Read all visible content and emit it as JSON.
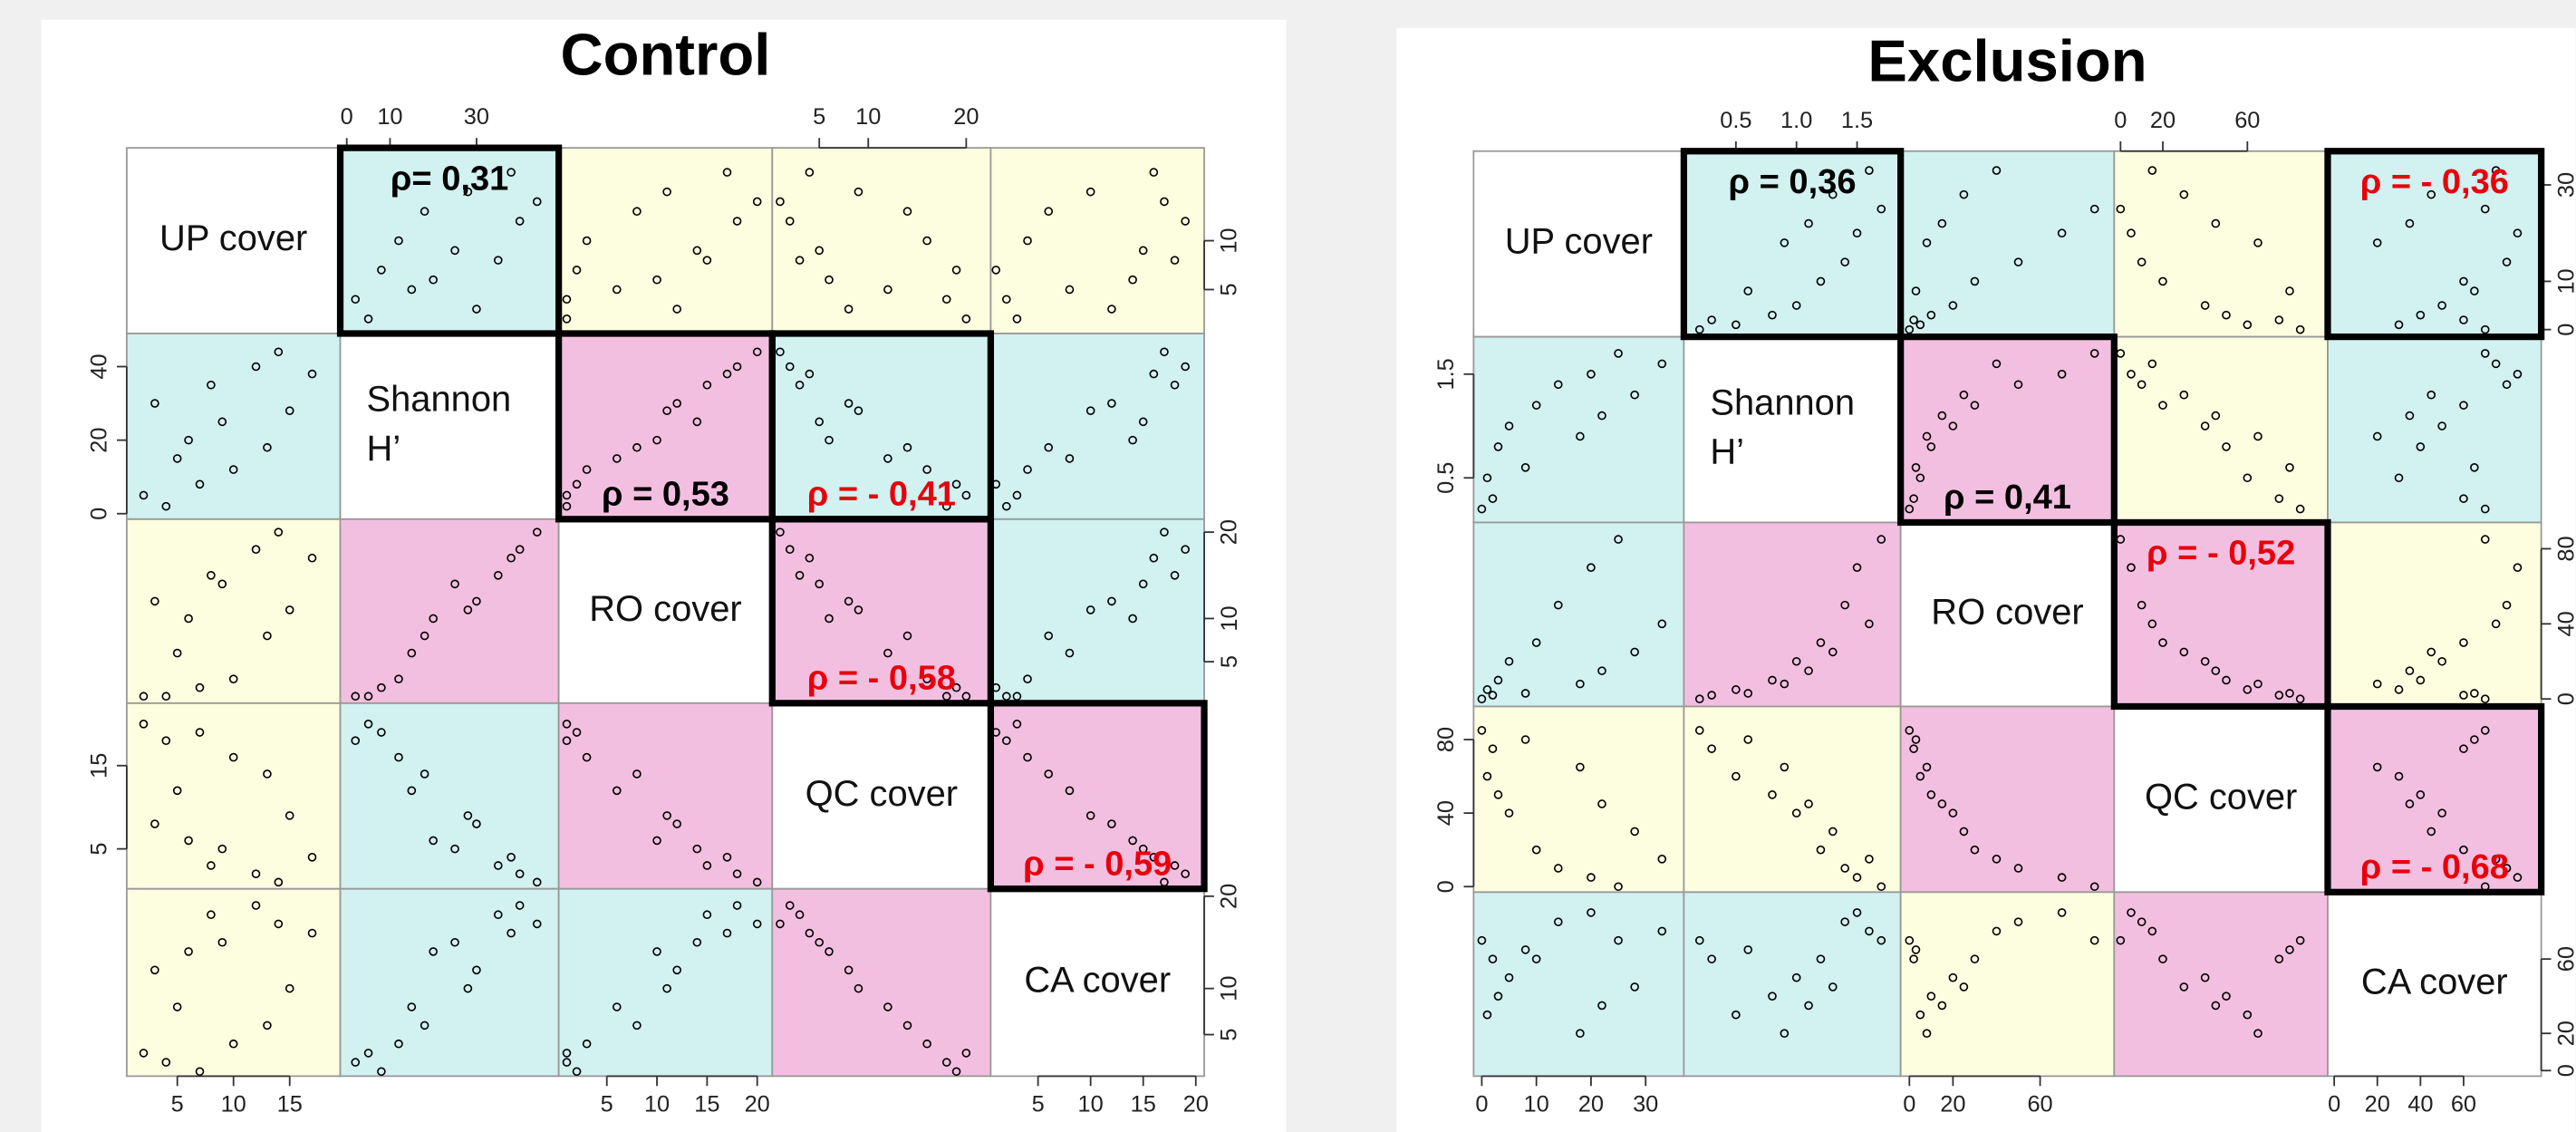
{
  "chart_data": [
    {
      "type": "scatter_matrix",
      "title": "Control",
      "variables": [
        {
          "name": [
            "UP cover"
          ],
          "values": [
            2,
            3,
            4,
            5,
            6,
            7,
            8,
            9,
            10,
            12,
            13,
            14,
            15,
            17
          ],
          "lim": [
            0.5,
            19.5
          ],
          "col_ticks": [
            5,
            10,
            15
          ],
          "row_ticks": [
            5,
            10
          ]
        },
        {
          "name": [
            "Shannon",
            "H’"
          ],
          "values": [
            5,
            30,
            2,
            15,
            20,
            8,
            35,
            25,
            12,
            40,
            18,
            44,
            28,
            38
          ],
          "lim": [
            -1.5,
            49
          ],
          "col_ticks": [
            0,
            10,
            30
          ],
          "row_ticks": [
            0,
            20,
            40
          ]
        },
        {
          "name": [
            "RO cover"
          ],
          "values": [
            1,
            12,
            1,
            6,
            10,
            2,
            15,
            14,
            3,
            18,
            8,
            20,
            11,
            17
          ],
          "lim": [
            0.2,
            21.5
          ],
          "col_ticks": [
            5,
            10,
            15,
            20
          ],
          "row_ticks": [
            5,
            10,
            20
          ]
        },
        {
          "name": [
            "QC cover"
          ],
          "values": [
            20,
            8,
            18,
            12,
            6,
            19,
            3,
            5,
            16,
            2,
            14,
            1,
            9,
            4
          ],
          "lim": [
            0.2,
            22.5
          ],
          "col_ticks": [
            5,
            10,
            20
          ],
          "row_ticks": [
            5,
            15
          ]
        },
        {
          "name": [
            "CA cover"
          ],
          "values": [
            3,
            12,
            2,
            8,
            14,
            1,
            18,
            15,
            4,
            19,
            6,
            17,
            10,
            16
          ],
          "lim": [
            0.5,
            20.8
          ],
          "col_ticks": [
            5,
            10,
            15,
            20
          ],
          "row_ticks": [
            5,
            10,
            20
          ]
        }
      ],
      "panel_colors": [
        [
          null,
          "#d2f1f1",
          "#fdfde0",
          "#fdfde0",
          "#fdfde0"
        ],
        [
          "#d2f1f1",
          null,
          "#f3bfe0",
          "#d2f1f1",
          "#d2f1f1"
        ],
        [
          "#fdfde0",
          "#f3bfe0",
          null,
          "#f3bfe0",
          "#d2f1f1"
        ],
        [
          "#fdfde0",
          "#d2f1f1",
          "#f3bfe0",
          null,
          "#f3bfe0"
        ],
        [
          "#fdfde0",
          "#d2f1f1",
          "#d2f1f1",
          "#f3bfe0",
          null
        ]
      ],
      "correlations": [
        {
          "cell": [
            0,
            1
          ],
          "value": 0.31,
          "label": "ρ=  0,31"
        },
        {
          "cell": [
            1,
            2
          ],
          "value": 0.53,
          "label": "ρ =  0,53"
        },
        {
          "cell": [
            1,
            3
          ],
          "value": -0.41,
          "label": "ρ = - 0,41"
        },
        {
          "cell": [
            2,
            3
          ],
          "value": -0.58,
          "label": "ρ = - 0,58"
        },
        {
          "cell": [
            3,
            4
          ],
          "value": -0.59,
          "label": "ρ = - 0,59"
        }
      ]
    },
    {
      "type": "scatter_matrix",
      "title": "Exclusion",
      "variables": [
        {
          "name": [
            "UP cover"
          ],
          "values": [
            0,
            1,
            2,
            3,
            5,
            8,
            10,
            14,
            18,
            20,
            22,
            25,
            28,
            33
          ],
          "lim": [
            -1.5,
            37
          ],
          "col_ticks": [
            0,
            10,
            20,
            30
          ],
          "row_ticks": [
            0,
            10,
            30
          ]
        },
        {
          "name": [
            "Shannon",
            "H’"
          ],
          "values": [
            0.2,
            0.5,
            0.3,
            0.8,
            1.0,
            0.6,
            1.2,
            1.4,
            0.9,
            1.5,
            1.1,
            1.7,
            1.3,
            1.6
          ],
          "lim": [
            0.07,
            1.86
          ],
          "col_ticks": [
            0.5,
            {
              "value": 1,
              "label": "1.0"
            },
            1.5
          ],
          "row_ticks": [
            0.5,
            1.5
          ]
        },
        {
          "name": [
            "RO cover"
          ],
          "values": [
            0,
            5,
            2,
            10,
            20,
            3,
            30,
            50,
            8,
            70,
            15,
            85,
            25,
            40
          ],
          "lim": [
            -4,
            94
          ],
          "col_ticks": [
            0,
            20,
            60
          ],
          "row_ticks": [
            0,
            40,
            80
          ]
        },
        {
          "name": [
            "QC cover"
          ],
          "values": [
            85,
            60,
            75,
            50,
            40,
            80,
            20,
            10,
            65,
            5,
            45,
            0,
            30,
            15
          ],
          "lim": [
            -3,
            98
          ],
          "col_ticks": [
            0,
            20,
            60
          ],
          "row_ticks": [
            0,
            40,
            80
          ]
        },
        {
          "name": [
            "CA cover"
          ],
          "values": [
            70,
            30,
            60,
            40,
            50,
            65,
            60,
            80,
            20,
            85,
            35,
            70,
            45,
            75
          ],
          "lim": [
            -3,
            96
          ],
          "col_ticks": [
            0,
            20,
            40,
            60
          ],
          "row_ticks": [
            0,
            20,
            60
          ]
        }
      ],
      "panel_colors": [
        [
          null,
          "#d2f1f1",
          "#d2f1f1",
          "#fdfde0",
          "#d2f1f1"
        ],
        [
          "#d2f1f1",
          null,
          "#f3bfe0",
          "#fdfde0",
          "#d2f1f1"
        ],
        [
          "#d2f1f1",
          "#f3bfe0",
          null,
          "#f3bfe0",
          "#fdfde0"
        ],
        [
          "#fdfde0",
          "#fdfde0",
          "#f3bfe0",
          null,
          "#f3bfe0"
        ],
        [
          "#d2f1f1",
          "#d2f1f1",
          "#fdfde0",
          "#f3bfe0",
          null
        ]
      ],
      "correlations": [
        {
          "cell": [
            0,
            1
          ],
          "value": 0.36,
          "label": "ρ =  0,36"
        },
        {
          "cell": [
            0,
            4
          ],
          "value": -0.36,
          "label": "ρ =  - 0,36"
        },
        {
          "cell": [
            1,
            2
          ],
          "value": 0.41,
          "label": "ρ =  0,41"
        },
        {
          "cell": [
            2,
            3
          ],
          "value": -0.52,
          "label": "ρ =  - 0,52"
        },
        {
          "cell": [
            3,
            4
          ],
          "value": -0.68,
          "label": "ρ =  - 0,68"
        }
      ]
    }
  ]
}
